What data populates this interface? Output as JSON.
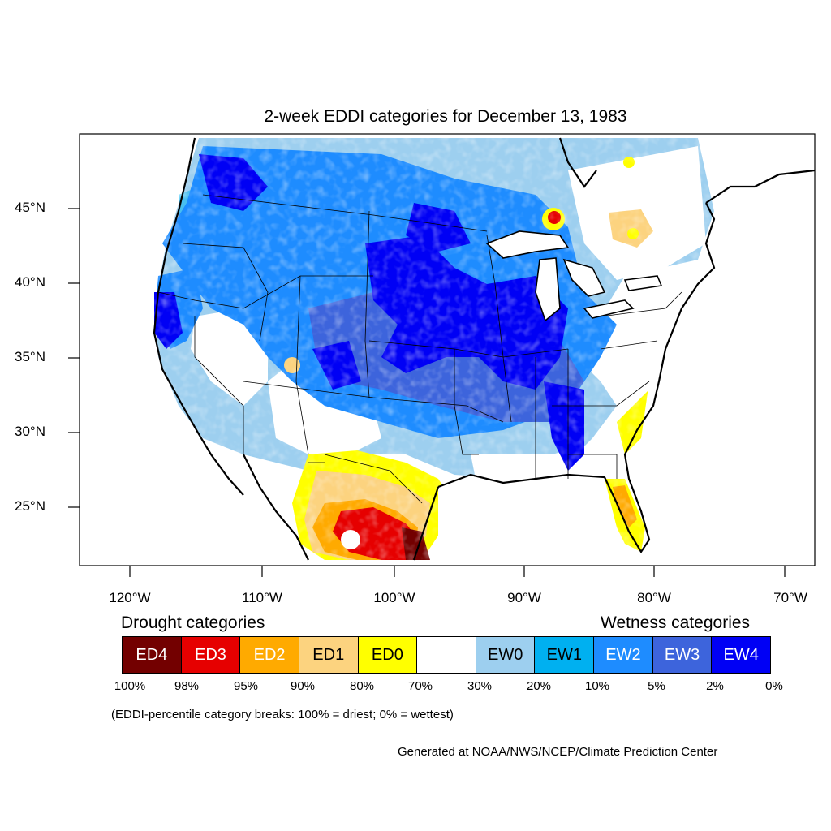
{
  "title": "2-week EDDI categories for December 13, 1983",
  "lat_labels": [
    "45°N",
    "40°N",
    "35°N",
    "30°N",
    "25°N"
  ],
  "lon_labels": [
    "120°W",
    "110°W",
    "100°W",
    "90°W",
    "80°W",
    "70°W"
  ],
  "legend": {
    "drought_heading": "Drought categories",
    "wetness_heading": "Wetness categories",
    "categories": [
      {
        "label": "ED4",
        "color": "#730000",
        "text_color": "#ffffff"
      },
      {
        "label": "ED3",
        "color": "#e60000",
        "text_color": "#ffffff"
      },
      {
        "label": "ED2",
        "color": "#ffaa00",
        "text_color": "#ffffff"
      },
      {
        "label": "ED1",
        "color": "#fcd37f",
        "text_color": "#000000"
      },
      {
        "label": "ED0",
        "color": "#ffff00",
        "text_color": "#000000"
      },
      {
        "label": "",
        "color": "#ffffff",
        "text_color": "#000000"
      },
      {
        "label": "EW0",
        "color": "#9dcfef",
        "text_color": "#000000"
      },
      {
        "label": "EW1",
        "color": "#00b0f0",
        "text_color": "#000000"
      },
      {
        "label": "EW2",
        "color": "#1e8cff",
        "text_color": "#ffffff"
      },
      {
        "label": "EW3",
        "color": "#3d64dc",
        "text_color": "#ffffff"
      },
      {
        "label": "EW4",
        "color": "#0000f5",
        "text_color": "#ffffff"
      }
    ],
    "breaks": [
      "100%",
      "98%",
      "95%",
      "90%",
      "80%",
      "70%",
      "30%",
      "20%",
      "10%",
      "5%",
      "2%",
      "0%"
    ],
    "note": "(EDDI-percentile category breaks: 100% = driest; 0% = wettest)"
  },
  "credit": "Generated at NOAA/NWS/NCEP/Climate Prediction Center"
}
